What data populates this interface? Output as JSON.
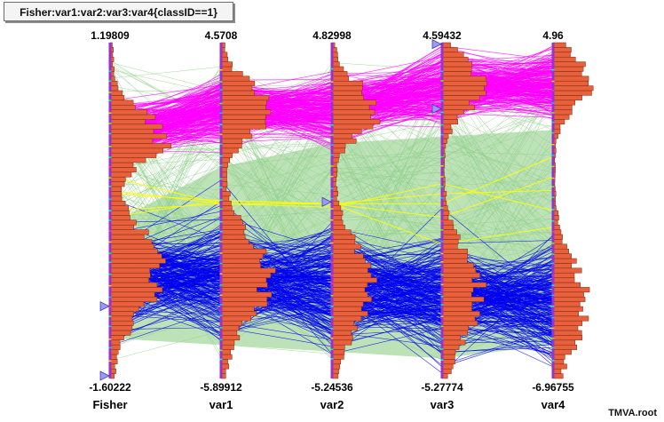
{
  "title": "Fisher:var1:var2:var3:var4{classID==1}",
  "footer": "TMVA.root",
  "colors": {
    "background_band": "#a8d8a0",
    "line_signal": "#ff00ff",
    "line_background": "#0000ee",
    "line_selected": "#ffff00",
    "axis": "#9933cc",
    "hist_fill": "#e8603c",
    "hist_edge": "#7a2a10",
    "marker": "#9999ff"
  },
  "chart_data": {
    "type": "parallel_coordinates",
    "grid": false,
    "axes": [
      {
        "name": "Fisher",
        "max": "1.19809",
        "min": "-1.60222",
        "max_value": 1.19809,
        "min_value": -1.60222
      },
      {
        "name": "var1",
        "max": "4.5708",
        "min": "-5.89912",
        "max_value": 4.5708,
        "min_value": -5.89912
      },
      {
        "name": "var2",
        "max": "4.82998",
        "min": "-5.24536",
        "max_value": 4.82998,
        "min_value": -5.24536
      },
      {
        "name": "var3",
        "max": "4.59432",
        "min": "-5.27774",
        "max_value": 4.59432,
        "min_value": -5.27774
      },
      {
        "name": "var4",
        "max": "4.96",
        "min": "-6.96755",
        "max_value": 4.96,
        "min_value": -6.96755
      }
    ],
    "class_peaks_normalized": {
      "Fisher": [
        0.72,
        0.32
      ],
      "var1": [
        0.8,
        0.3
      ],
      "var2": [
        0.8,
        0.27
      ],
      "var3": [
        0.87,
        0.25
      ],
      "var4": [
        0.88,
        0.22
      ]
    },
    "histogram_peaks": {
      "Fisher": 0.62,
      "var1": 0.6,
      "var2": 0.52,
      "var3": 0.48,
      "var4": 0.42
    },
    "markers": [
      {
        "axis": "Fisher",
        "side": "left",
        "level": -1.0
      },
      {
        "axis": "Fisher",
        "side": "left",
        "level": -1.58
      },
      {
        "axis": "var2",
        "side": "left",
        "level": 0.05
      },
      {
        "axis": "var3",
        "side": "left",
        "level": 2.65
      },
      {
        "axis": "var3",
        "side": "left",
        "level": 4.55
      }
    ]
  }
}
